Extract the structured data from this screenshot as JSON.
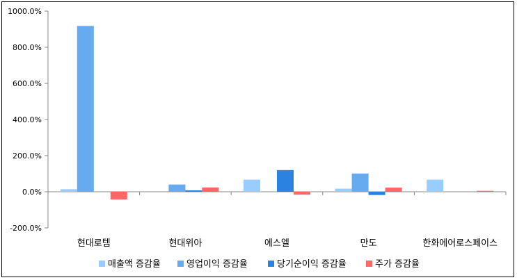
{
  "chart_data": {
    "type": "bar",
    "categories": [
      "현대로템",
      "현대위아",
      "에스엘",
      "만도",
      "한화에어로스페이스"
    ],
    "series": [
      {
        "name": "매출액 증감율",
        "color": "#99ccff",
        "values": [
          14,
          0,
          67,
          17,
          67
        ]
      },
      {
        "name": "영업이익 증감율",
        "color": "#66aaf0",
        "values": [
          918,
          40,
          0,
          101,
          0
        ]
      },
      {
        "name": "당기순이익 증감율",
        "color": "#2b82e0",
        "values": [
          0,
          8,
          120,
          -18,
          0
        ]
      },
      {
        "name": "주가 증감율",
        "color": "#ff6666",
        "values": [
          -43,
          24,
          -16,
          23,
          5
        ]
      }
    ],
    "ylim": [
      -200,
      1000
    ],
    "yticks": [
      "-200.0%",
      "0.0%",
      "200.0%",
      "400.0%",
      "600.0%",
      "800.0%",
      "1000.0%"
    ],
    "ytick_values": [
      -200,
      0,
      200,
      400,
      600,
      800,
      1000
    ],
    "legend_position": "bottom",
    "grid": false
  }
}
